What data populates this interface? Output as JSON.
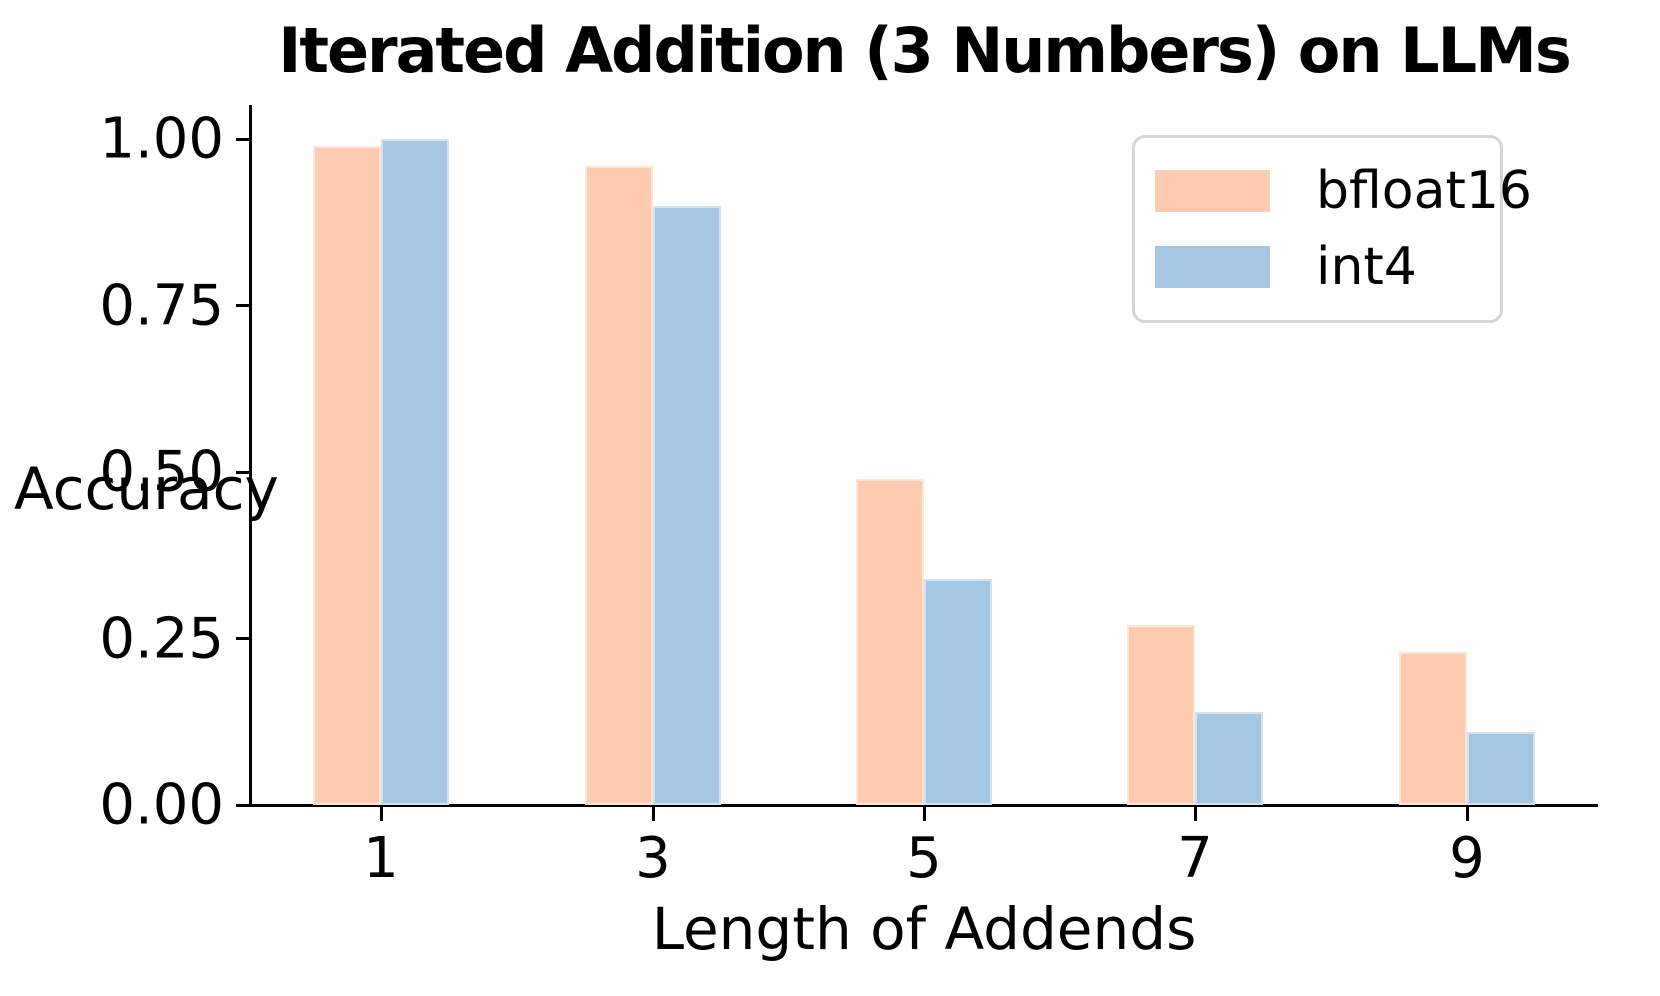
{
  "chart_data": {
    "type": "bar",
    "title": "Iterated Addition (3 Numbers) on LLMs",
    "xlabel": "Length of Addends",
    "ylabel": "Accuracy",
    "categories": [
      "1",
      "3",
      "5",
      "7",
      "9"
    ],
    "series": [
      {
        "name": "bfloat16",
        "color": "#FCCBB0",
        "values": [
          0.99,
          0.96,
          0.49,
          0.27,
          0.23
        ]
      },
      {
        "name": "int4",
        "color": "#A5C7E2",
        "values": [
          1.0,
          0.9,
          0.34,
          0.14,
          0.11
        ]
      }
    ],
    "y_ticks": {
      "labels": [
        "0.00",
        "0.25",
        "0.50",
        "0.75",
        "1.00"
      ],
      "values": [
        0,
        0.25,
        0.5,
        0.75,
        1.0
      ]
    },
    "ylim": [
      0,
      1.05
    ],
    "grid": false,
    "legend_position": "upper right",
    "axis_color": "#000000",
    "background_color": "#ffffff"
  }
}
